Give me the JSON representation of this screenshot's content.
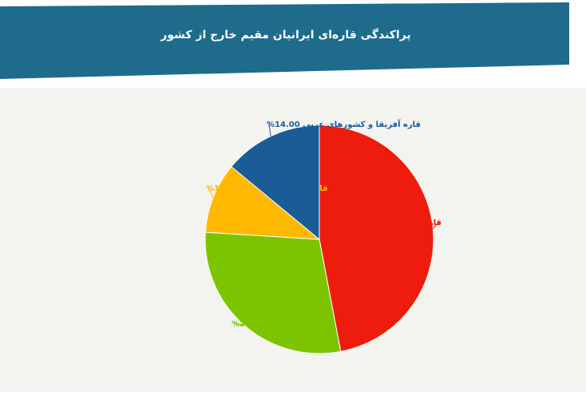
{
  "header": {
    "title": "پراکندگی قاره‌ای ایرانیان مقیم خارج از کشور",
    "background_color": "#1f6b8c"
  },
  "panel": {
    "background_color": "#f3f3f0"
  },
  "chart_data": {
    "type": "pie",
    "title": "پراکندگی قاره‌ای ایرانیان مقیم خارج از کشور",
    "slices": [
      {
        "name": "قاره آمریکا",
        "value": 47.0,
        "label": "قاره آمریکا 47.00%",
        "color": "#ee1c0d"
      },
      {
        "name": "قاره اروپا",
        "value": 29.0,
        "label": "قاره اروپا 29.00%",
        "color": "#7dc400"
      },
      {
        "name": "قاره آسیا و اقیانوسیه",
        "value": 10.0,
        "label": "قاره آسیا و اقیانوسیه 10.00%",
        "color": "#ffb800"
      },
      {
        "name": "قاره آفریقا و کشورهای عربی",
        "value": 14.0,
        "label": "قاره آفریقا و کشورهای عربی 14.00%",
        "color": "#1a5c96"
      }
    ],
    "start_angle_deg": 0,
    "direction": "clockwise"
  }
}
